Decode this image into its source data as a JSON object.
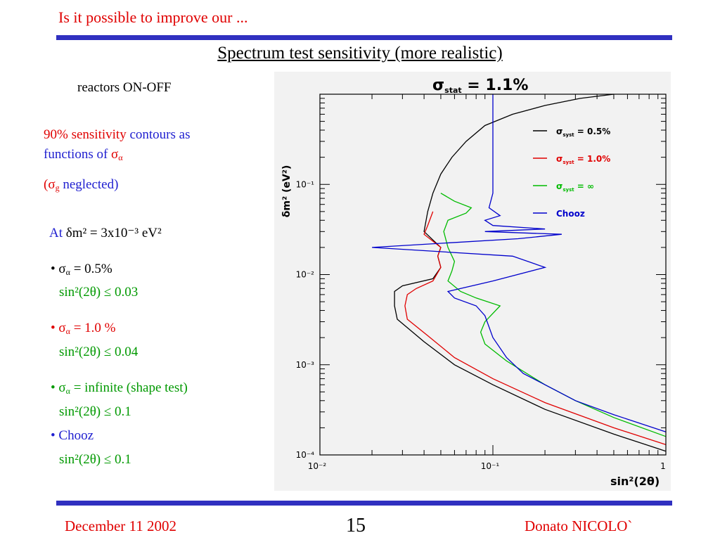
{
  "header": {
    "title": "Is it possible to improve our ..."
  },
  "slide": {
    "title": "Spectrum test sensitivity (more realistic)",
    "reactors": "reactors ON-OFF",
    "sens_red": "90% sensitivity",
    "sens_blue": "contours  as",
    "functions_of": "functions of",
    "sigma": "σ",
    "alpha": "α",
    "g_sub": "g",
    "neglected_open": "(",
    "neglected": " neglected)",
    "at_label": "At",
    "at_value": "δm² = 3x10⁻³ eV²",
    "bullet": "•",
    "items": [
      {
        "label": "= 0.5%",
        "result": "sin²(2θ) ≤ 0.03"
      },
      {
        "label": "= 1.0 %",
        "result": "sin²(2θ) ≤ 0.04"
      },
      {
        "label": "= infinite (shape test)",
        "result": "sin²(2θ) ≤ 0.1"
      },
      {
        "label": "Chooz",
        "result": "sin²(2θ) ≤ 0.1"
      }
    ]
  },
  "chart_data": {
    "type": "line",
    "title": "σstat = 1.1%",
    "title_main": "σ",
    "title_sub": "stat",
    "title_rest": " = 1.1%",
    "xlabel": "sin²(2θ)",
    "ylabel": "δm² (eV²)",
    "xscale": "log",
    "yscale": "log",
    "xlim": [
      0.01,
      1
    ],
    "ylim": [
      0.0001,
      1
    ],
    "x_tick_labels": [
      "10⁻²",
      "10⁻¹",
      "1"
    ],
    "y_tick_labels": [
      "10⁻¹",
      "10⁻²",
      "10⁻³",
      "10⁻⁴"
    ],
    "legend_position": "top-right",
    "series": [
      {
        "name": "σsyst = 0.5%",
        "legend_main": "σ",
        "legend_sub": "syst",
        "legend_rest": " = 0.5%",
        "color": "#000000",
        "points": [
          [
            1,
            0.00011
          ],
          [
            0.5,
            0.00017
          ],
          [
            0.2,
            0.00032
          ],
          [
            0.1,
            0.0006
          ],
          [
            0.06,
            0.001
          ],
          [
            0.04,
            0.0018
          ],
          [
            0.028,
            0.0032
          ],
          [
            0.027,
            0.0045
          ],
          [
            0.027,
            0.0065
          ],
          [
            0.03,
            0.0075
          ],
          [
            0.045,
            0.009
          ],
          [
            0.05,
            0.012
          ],
          [
            0.048,
            0.016
          ],
          [
            0.05,
            0.02
          ],
          [
            0.04,
            0.03
          ],
          [
            0.042,
            0.05
          ],
          [
            0.045,
            0.08
          ],
          [
            0.05,
            0.13
          ],
          [
            0.058,
            0.2
          ],
          [
            0.07,
            0.3
          ],
          [
            0.09,
            0.45
          ],
          [
            0.13,
            0.6
          ],
          [
            0.2,
            0.75
          ],
          [
            0.32,
            0.9
          ],
          [
            0.5,
            1.0
          ]
        ]
      },
      {
        "name": "σsyst = 1.0%",
        "legend_main": "σ",
        "legend_sub": "syst",
        "legend_rest": " = 1.0%",
        "color": "#e00000",
        "points": [
          [
            1,
            0.00013
          ],
          [
            0.5,
            0.0002
          ],
          [
            0.2,
            0.00038
          ],
          [
            0.1,
            0.0007
          ],
          [
            0.06,
            0.0012
          ],
          [
            0.042,
            0.0021
          ],
          [
            0.032,
            0.0032
          ],
          [
            0.031,
            0.0045
          ],
          [
            0.032,
            0.006
          ],
          [
            0.036,
            0.007
          ],
          [
            0.045,
            0.0085
          ],
          [
            0.05,
            0.012
          ],
          [
            0.048,
            0.016
          ],
          [
            0.05,
            0.02
          ],
          [
            0.04,
            0.028
          ],
          [
            0.042,
            0.035
          ],
          [
            0.045,
            0.05
          ]
        ]
      },
      {
        "name": "σsyst = ∞",
        "legend_main": "σ",
        "legend_sub": "syst",
        "legend_rest": " = ∞",
        "color": "#00bb00",
        "points": [
          [
            1,
            0.00016
          ],
          [
            0.5,
            0.00026
          ],
          [
            0.3,
            0.0004
          ],
          [
            0.2,
            0.0006
          ],
          [
            0.12,
            0.0011
          ],
          [
            0.09,
            0.0017
          ],
          [
            0.085,
            0.0023
          ],
          [
            0.09,
            0.003
          ],
          [
            0.11,
            0.0045
          ],
          [
            0.08,
            0.0055
          ],
          [
            0.065,
            0.0065
          ],
          [
            0.055,
            0.0085
          ],
          [
            0.058,
            0.011
          ],
          [
            0.06,
            0.014
          ],
          [
            0.055,
            0.02
          ],
          [
            0.052,
            0.03
          ],
          [
            0.055,
            0.04
          ],
          [
            0.07,
            0.048
          ],
          [
            0.075,
            0.055
          ],
          [
            0.06,
            0.065
          ],
          [
            0.05,
            0.08
          ]
        ]
      },
      {
        "name": "Chooz",
        "legend_main": "Chooz",
        "legend_sub": "",
        "legend_rest": "",
        "color": "#0000cc",
        "points": [
          [
            1,
            0.00018
          ],
          [
            0.5,
            0.00028
          ],
          [
            0.3,
            0.0004
          ],
          [
            0.2,
            0.0006
          ],
          [
            0.15,
            0.0008
          ],
          [
            0.12,
            0.0012
          ],
          [
            0.1,
            0.002
          ],
          [
            0.09,
            0.0035
          ],
          [
            0.08,
            0.0045
          ],
          [
            0.06,
            0.0055
          ],
          [
            0.055,
            0.0065
          ],
          [
            0.1,
            0.0085
          ],
          [
            0.2,
            0.012
          ],
          [
            0.13,
            0.016
          ],
          [
            0.02,
            0.02
          ],
          [
            0.14,
            0.025
          ],
          [
            0.25,
            0.028
          ],
          [
            0.09,
            0.03
          ],
          [
            0.2,
            0.032
          ],
          [
            0.1,
            0.035
          ],
          [
            0.09,
            0.04
          ],
          [
            0.11,
            0.045
          ],
          [
            0.095,
            0.055
          ],
          [
            0.1,
            0.08
          ],
          [
            0.1,
            0.15
          ],
          [
            0.1,
            0.3
          ],
          [
            0.1,
            0.6
          ],
          [
            0.1,
            1.0
          ]
        ]
      }
    ]
  },
  "footer": {
    "date": "December 11 2002",
    "page": "15",
    "author": "Donato NICOLO`"
  }
}
